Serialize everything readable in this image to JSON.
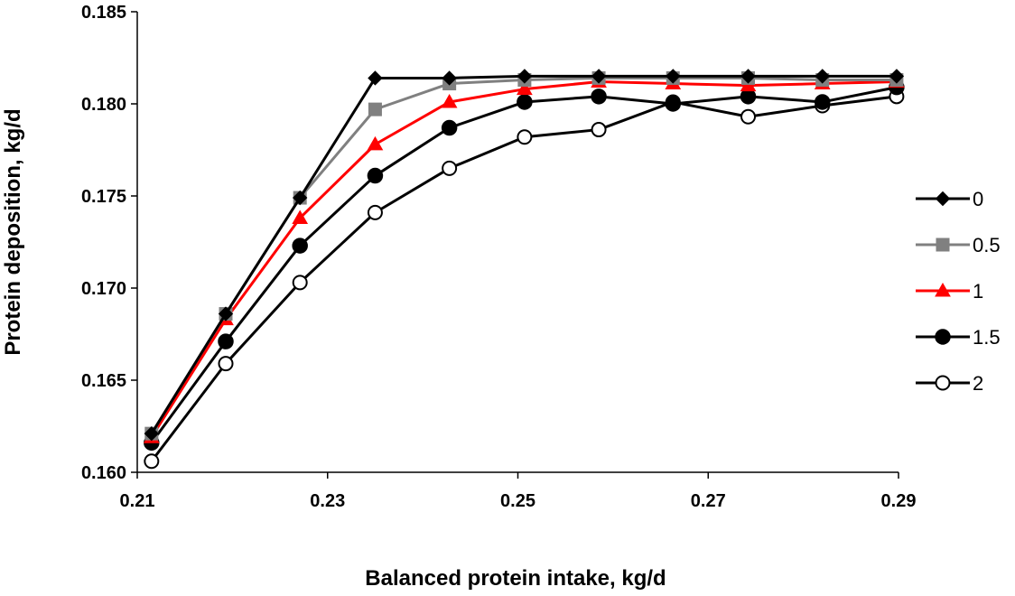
{
  "chart_data": {
    "type": "line",
    "xlabel": "Balanced protein intake, kg/d",
    "ylabel": "Protein deposition, kg/d",
    "xlim": [
      0.21,
      0.29
    ],
    "ylim": [
      0.16,
      0.185
    ],
    "x_ticks": [
      "0.21",
      "0.23",
      "0.25",
      "0.27",
      "0.29"
    ],
    "y_ticks": [
      "0.160",
      "0.165",
      "0.170",
      "0.175",
      "0.180",
      "0.185"
    ],
    "grid": false,
    "legend_position": "right",
    "x": [
      0.2115,
      0.2193,
      0.2271,
      0.235,
      0.2428,
      0.2507,
      0.2585,
      0.2663,
      0.2742,
      0.282,
      0.2898
    ],
    "series": [
      {
        "name": "0",
        "color": "#000000",
        "marker": "diamond",
        "values": [
          0.1621,
          0.1686,
          0.1749,
          0.1814,
          0.1814,
          0.1815,
          0.1815,
          0.1815,
          0.1815,
          0.1815,
          0.1815
        ]
      },
      {
        "name": "0.5",
        "color": "#808080",
        "marker": "square",
        "values": [
          0.1621,
          0.1686,
          0.1749,
          0.1797,
          0.1811,
          0.1813,
          0.1814,
          0.1814,
          0.1814,
          0.1813,
          0.1813
        ]
      },
      {
        "name": "1",
        "color": "#ff0000",
        "marker": "triangle",
        "values": [
          0.1619,
          0.1683,
          0.1738,
          0.1778,
          0.1801,
          0.1808,
          0.1812,
          0.1811,
          0.181,
          0.1811,
          0.1812
        ]
      },
      {
        "name": "1.5",
        "color": "#000000",
        "marker": "filled-circle",
        "values": [
          0.1616,
          0.1671,
          0.1723,
          0.1761,
          0.1787,
          0.1801,
          0.1804,
          0.18,
          0.1804,
          0.1801,
          0.1809
        ]
      },
      {
        "name": "2",
        "color": "#000000",
        "marker": "open-circle",
        "values": [
          0.1606,
          0.1659,
          0.1703,
          0.1741,
          0.1765,
          0.1782,
          0.1786,
          0.1801,
          0.1793,
          0.1799,
          0.1804
        ]
      }
    ]
  }
}
